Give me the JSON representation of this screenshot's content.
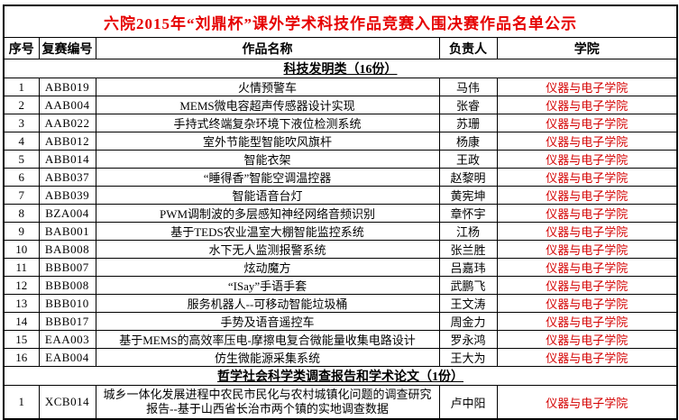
{
  "title": "六院2015年“刘鼎杯”课外学术科技作品竞赛入围决赛作品名单公示",
  "columns": [
    "序号",
    "复赛编号",
    "作品名称",
    "负责人",
    "学院"
  ],
  "colors": {
    "title_red": "#e60000",
    "college_red": "#d40000",
    "border_black": "#000000"
  },
  "sections": [
    {
      "header": "科技发明类（16份）",
      "rows": [
        {
          "no": "1",
          "code": "ABB019",
          "name": "火情预警车",
          "person": "马伟",
          "college": "仪器与电子学院"
        },
        {
          "no": "2",
          "code": "AAB004",
          "name": "MEMS微电容超声传感器设计实现",
          "person": "张睿",
          "college": "仪器与电子学院"
        },
        {
          "no": "3",
          "code": "AAB022",
          "name": "手持式终端复杂环境下液位检测系统",
          "person": "苏珊",
          "college": "仪器与电子学院"
        },
        {
          "no": "4",
          "code": "ABB012",
          "name": "室外节能型智能吹风旗杆",
          "person": "杨康",
          "college": "仪器与电子学院"
        },
        {
          "no": "5",
          "code": "ABB014",
          "name": "智能衣架",
          "person": "王政",
          "college": "仪器与电子学院"
        },
        {
          "no": "6",
          "code": "ABB037",
          "name": "“睡得香”智能空调温控器",
          "person": "赵黎明",
          "college": "仪器与电子学院"
        },
        {
          "no": "7",
          "code": "ABB039",
          "name": "智能语音台灯",
          "person": "黄宪坤",
          "college": "仪器与电子学院"
        },
        {
          "no": "8",
          "code": "BZA004",
          "name": "PWM调制波的多层感知神经网络音频识别",
          "person": "章怀宇",
          "college": "仪器与电子学院"
        },
        {
          "no": "9",
          "code": "BAB001",
          "name": "基于TEDS农业温室大棚智能监控系统",
          "person": "江杨",
          "college": "仪器与电子学院"
        },
        {
          "no": "10",
          "code": "BAB008",
          "name": "水下无人监测报警系统",
          "person": "张兰胜",
          "college": "仪器与电子学院"
        },
        {
          "no": "11",
          "code": "BBB007",
          "name": "炫动魔方",
          "person": "吕嘉玮",
          "college": "仪器与电子学院"
        },
        {
          "no": "12",
          "code": "BBB008",
          "name": "“ISay”手语手套",
          "person": "武鹏飞",
          "college": "仪器与电子学院"
        },
        {
          "no": "13",
          "code": "BBB010",
          "name": "服务机器人--可移动智能垃圾桶",
          "person": "王文涛",
          "college": "仪器与电子学院"
        },
        {
          "no": "14",
          "code": "BBB017",
          "name": "手势及语音遥控车",
          "person": "周金力",
          "college": "仪器与电子学院"
        },
        {
          "no": "15",
          "code": "EAA003",
          "name": "基于MEMS的高效率压电-摩擦电复合微能量收集电路设计",
          "person": "罗永鸿",
          "college": "仪器与电子学院"
        },
        {
          "no": "16",
          "code": "EAB004",
          "name": "仿生微能源采集系统",
          "person": "王大为",
          "college": "仪器与电子学院"
        }
      ]
    },
    {
      "header": "哲学社会科学类调查报告和学术论文（1份）",
      "rows": [
        {
          "no": "1",
          "code": "XCB014",
          "name": "城乡一体化发展进程中农民市民化与农村城镇化问题的调查研究报告--基于山西省长治市两个镇的实地调查数据",
          "person": "卢中阳",
          "college": "仪器与电子学院",
          "wrap": true
        }
      ]
    }
  ]
}
